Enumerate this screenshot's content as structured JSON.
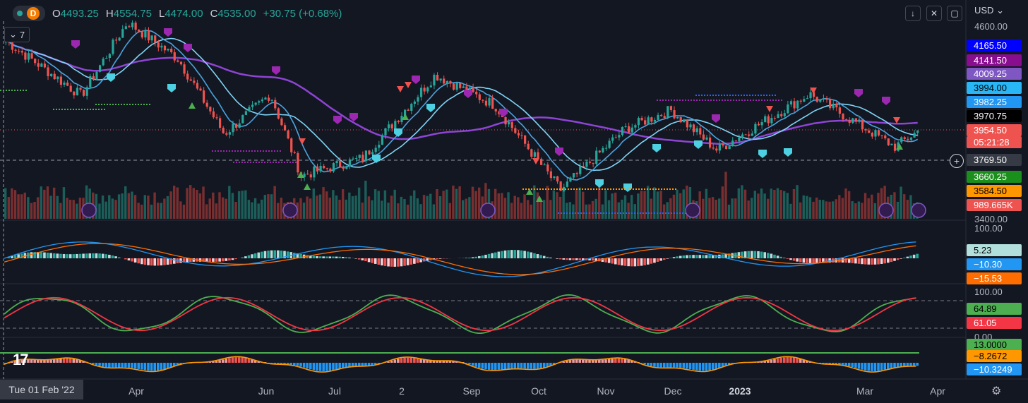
{
  "header": {
    "interval_badge": "D",
    "ohlc": {
      "o_label": "O",
      "o": "4493.25",
      "h_label": "H",
      "h": "4554.75",
      "l_label": "L",
      "l": "4474.00",
      "c_label": "C",
      "c": "4535.00",
      "change": "+30.75 (+0.68%)"
    },
    "indicators_count": "7",
    "currency": "USD"
  },
  "colors": {
    "bg": "#131722",
    "up": "#26a69a",
    "down": "#ef5350",
    "ma_fast": "#4aa3df",
    "ma_mid": "#7fd4f5",
    "ma_slow": "#8e44d4",
    "green_line": "#4caf50",
    "orange": "#ff9800"
  },
  "price_axis": {
    "labels": [
      {
        "text": "4600.00",
        "value": 4600
      },
      {
        "text": "3400.00",
        "value": 3400
      }
    ],
    "tags": [
      {
        "text": "4165.50",
        "value": 4165.5,
        "bg": "#0000ff",
        "fg": "#ffffff",
        "top": 56
      },
      {
        "text": "4141.50",
        "value": 4141.5,
        "bg": "#880e8f",
        "fg": "#ffffff",
        "top": 77
      },
      {
        "text": "4009.25",
        "value": 4009.25,
        "bg": "#7e57c2",
        "fg": "#ffffff",
        "top": 96
      },
      {
        "text": "3994.00",
        "value": 3994,
        "bg": "#29b6f6",
        "fg": "#000000",
        "top": 116
      },
      {
        "text": "3982.25",
        "value": 3982.25,
        "bg": "#2196f3",
        "fg": "#ffffff",
        "top": 136
      },
      {
        "text": "3970.75",
        "value": 3970.75,
        "bg": "#000000",
        "fg": "#ffffff",
        "top": 156
      },
      {
        "text": "3954.50",
        "value": 3954.5,
        "bg": "#ef5350",
        "fg": "#ffffff",
        "top": 176
      },
      {
        "text": "05:21:28",
        "value": null,
        "bg": "#ef5350",
        "fg": "#ffffff",
        "top": 193
      },
      {
        "text": "3769.50",
        "value": 3769.5,
        "bg": "#363a45",
        "fg": "#ffffff",
        "top": 218
      },
      {
        "text": "3660.25",
        "value": 3660.25,
        "bg": "#1b8f1b",
        "fg": "#ffffff",
        "top": 242
      },
      {
        "text": "3584.50",
        "value": 3584.5,
        "bg": "#ff9800",
        "fg": "#000000",
        "top": 262
      },
      {
        "text": "989.665K",
        "value": null,
        "bg": "#ef5350",
        "fg": "#ffffff",
        "top": 282
      }
    ]
  },
  "macd_axis": {
    "labels": [
      {
        "text": "100.00"
      }
    ],
    "tags": [
      {
        "text": "5.23",
        "bg": "#b2dfdb",
        "fg": "#000000",
        "top": 346
      },
      {
        "text": "−10.30",
        "bg": "#2196f3",
        "fg": "#ffffff",
        "top": 366
      },
      {
        "text": "−15.53",
        "bg": "#ff6d00",
        "fg": "#ffffff",
        "top": 386
      }
    ]
  },
  "stoch_axis": {
    "labels": [
      {
        "text": "100.00"
      },
      {
        "text": "0.00"
      }
    ],
    "tags": [
      {
        "text": "64.89",
        "bg": "#4caf50",
        "fg": "#000000",
        "top": 429
      },
      {
        "text": "61.05",
        "bg": "#f23645",
        "fg": "#ffffff",
        "top": 449
      }
    ]
  },
  "osc_axis": {
    "tags": [
      {
        "text": "13.0000",
        "bg": "#4caf50",
        "fg": "#000000",
        "top": 480
      },
      {
        "text": "−8.2672",
        "bg": "#ff9800",
        "fg": "#000000",
        "top": 496
      },
      {
        "text": "−10.3249",
        "bg": "#2196f3",
        "fg": "#ffffff",
        "top": 515
      }
    ]
  },
  "time_axis": {
    "crosshair_date": "Tue 01 Feb '22",
    "months": [
      {
        "text": "Apr",
        "x": 193,
        "bold": false
      },
      {
        "text": "Jun",
        "x": 377,
        "bold": false
      },
      {
        "text": "Jul",
        "x": 474,
        "bold": false
      },
      {
        "text": "2",
        "x": 569,
        "bold": false
      },
      {
        "text": "Sep",
        "x": 668,
        "bold": false
      },
      {
        "text": "Oct",
        "x": 763,
        "bold": false
      },
      {
        "text": "Nov",
        "x": 858,
        "bold": false
      },
      {
        "text": "Dec",
        "x": 953,
        "bold": false
      },
      {
        "text": "2023",
        "x": 1048,
        "bold": true
      },
      {
        "text": "Mar",
        "x": 1225,
        "bold": false
      },
      {
        "text": "Apr",
        "x": 1328,
        "bold": false
      }
    ]
  },
  "chart_data": {
    "type": "candlestick",
    "symbol_interval": "D",
    "x_range": [
      "2022-02-01",
      "2023-03-24"
    ],
    "y_range": [
      3400,
      4600
    ],
    "last_close": 3954.5,
    "price_anchors": [
      {
        "date": "2022-02-01",
        "close": 4520
      },
      {
        "date": "2022-03-08",
        "close": 4170
      },
      {
        "date": "2022-03-29",
        "close": 4630
      },
      {
        "date": "2022-04-21",
        "close": 4400
      },
      {
        "date": "2022-05-12",
        "close": 3930
      },
      {
        "date": "2022-06-02",
        "close": 4180
      },
      {
        "date": "2022-06-16",
        "close": 3670
      },
      {
        "date": "2022-07-14",
        "close": 3780
      },
      {
        "date": "2022-08-16",
        "close": 4300
      },
      {
        "date": "2022-09-12",
        "close": 4110
      },
      {
        "date": "2022-10-12",
        "close": 3580
      },
      {
        "date": "2022-11-10",
        "close": 3960
      },
      {
        "date": "2022-12-01",
        "close": 4080
      },
      {
        "date": "2022-12-22",
        "close": 3830
      },
      {
        "date": "2023-02-02",
        "close": 4180
      },
      {
        "date": "2023-03-13",
        "close": 3850
      },
      {
        "date": "2023-03-24",
        "close": 3954.5
      }
    ],
    "panels": [
      "price+volume",
      "macd",
      "stochastic",
      "oscillator"
    ],
    "stochastic_range": [
      0,
      100
    ]
  }
}
